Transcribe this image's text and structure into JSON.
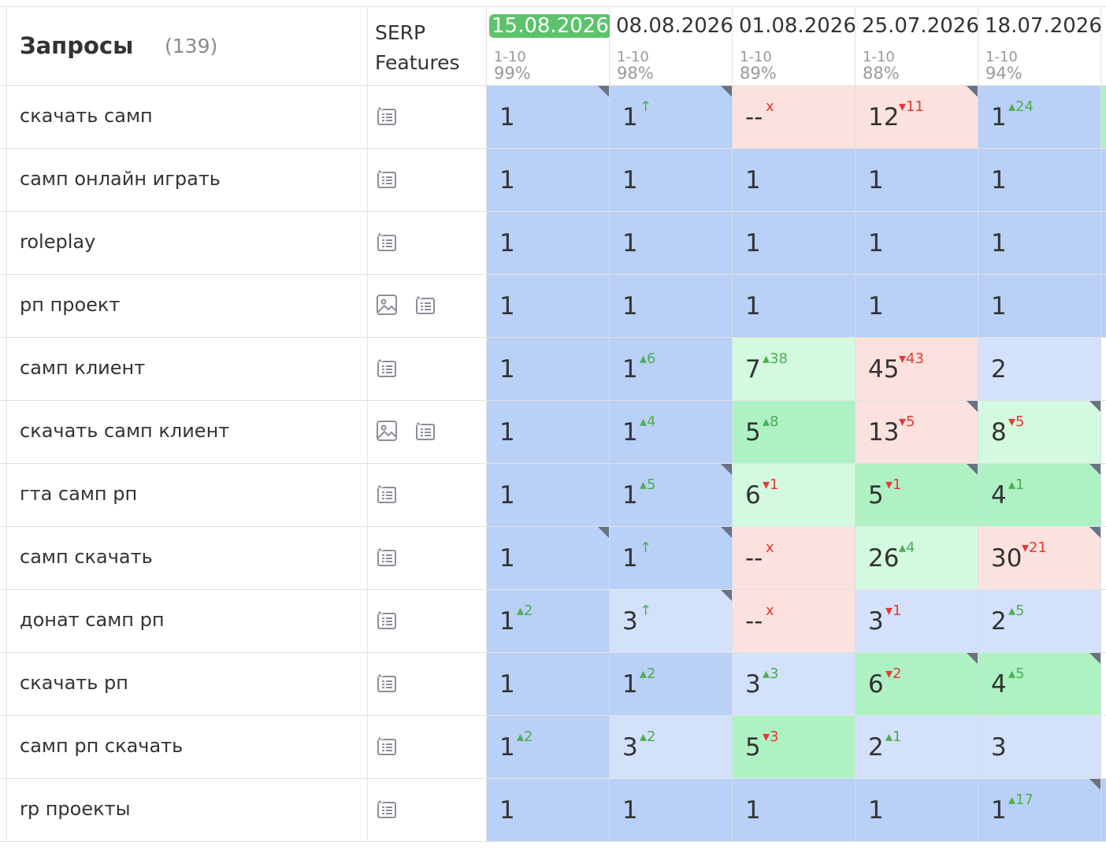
{
  "header": {
    "query_title": "Запросы",
    "query_count": "(139)",
    "serp_title": "SERP Features",
    "dates": [
      {
        "date": "15.08.2026",
        "range": "1-10",
        "pct": "99%",
        "active": true
      },
      {
        "date": "08.08.2026",
        "range": "1-10",
        "pct": "98%",
        "active": false
      },
      {
        "date": "01.08.2026",
        "range": "1-10",
        "pct": "89%",
        "active": false
      },
      {
        "date": "25.07.2026",
        "range": "1-10",
        "pct": "88%",
        "active": false
      },
      {
        "date": "18.07.2026",
        "range": "1-10",
        "pct": "94%",
        "active": false
      }
    ]
  },
  "colors": {
    "blue": "#b9d0f7",
    "lightblue": "#d3e1fb",
    "green": "#aef2c4",
    "lightgreen": "#d3fadf",
    "pink": "#fbe2df",
    "active_date": "#5cc36b",
    "delta_up": "#4caf50",
    "delta_down": "#e53935"
  },
  "rows": [
    {
      "query": "скачать самп",
      "serp": [
        "snippet-icon"
      ],
      "cells": [
        {
          "value": "1",
          "delta": "",
          "dir": "",
          "color": "blue",
          "corner": true
        },
        {
          "value": "1",
          "delta": "↑",
          "dir": "up",
          "color": "blue",
          "corner": true
        },
        {
          "value": "--",
          "delta": "x",
          "dir": "x",
          "color": "pink",
          "corner": false
        },
        {
          "value": "12",
          "delta": "▾11",
          "dir": "down",
          "color": "pink",
          "corner": true
        },
        {
          "value": "1",
          "delta": "▴24",
          "dir": "up",
          "color": "blue",
          "corner": false
        }
      ],
      "extra": "green"
    },
    {
      "query": "самп онлайн играть",
      "serp": [
        "snippet-icon"
      ],
      "cells": [
        {
          "value": "1",
          "delta": "",
          "dir": "",
          "color": "blue",
          "corner": false
        },
        {
          "value": "1",
          "delta": "",
          "dir": "",
          "color": "blue",
          "corner": false
        },
        {
          "value": "1",
          "delta": "",
          "dir": "",
          "color": "blue",
          "corner": false
        },
        {
          "value": "1",
          "delta": "",
          "dir": "",
          "color": "blue",
          "corner": false
        },
        {
          "value": "1",
          "delta": "",
          "dir": "",
          "color": "blue",
          "corner": false
        }
      ],
      "extra": "blue"
    },
    {
      "query": "roleplay",
      "serp": [
        "snippet-icon"
      ],
      "cells": [
        {
          "value": "1",
          "delta": "",
          "dir": "",
          "color": "blue",
          "corner": false
        },
        {
          "value": "1",
          "delta": "",
          "dir": "",
          "color": "blue",
          "corner": false
        },
        {
          "value": "1",
          "delta": "",
          "dir": "",
          "color": "blue",
          "corner": false
        },
        {
          "value": "1",
          "delta": "",
          "dir": "",
          "color": "blue",
          "corner": false
        },
        {
          "value": "1",
          "delta": "",
          "dir": "",
          "color": "blue",
          "corner": false
        }
      ],
      "extra": "blue"
    },
    {
      "query": "рп проект",
      "serp": [
        "image-icon",
        "snippet-icon"
      ],
      "cells": [
        {
          "value": "1",
          "delta": "",
          "dir": "",
          "color": "blue",
          "corner": false
        },
        {
          "value": "1",
          "delta": "",
          "dir": "",
          "color": "blue",
          "corner": false
        },
        {
          "value": "1",
          "delta": "",
          "dir": "",
          "color": "blue",
          "corner": false
        },
        {
          "value": "1",
          "delta": "",
          "dir": "",
          "color": "blue",
          "corner": false
        },
        {
          "value": "1",
          "delta": "",
          "dir": "",
          "color": "blue",
          "corner": false
        }
      ],
      "extra": "blue"
    },
    {
      "query": "самп клиент",
      "serp": [
        "snippet-icon"
      ],
      "cells": [
        {
          "value": "1",
          "delta": "",
          "dir": "",
          "color": "blue",
          "corner": false
        },
        {
          "value": "1",
          "delta": "▴6",
          "dir": "up",
          "color": "blue",
          "corner": false
        },
        {
          "value": "7",
          "delta": "▴38",
          "dir": "up",
          "color": "lightgreen",
          "corner": false
        },
        {
          "value": "45",
          "delta": "▾43",
          "dir": "down",
          "color": "pink",
          "corner": false
        },
        {
          "value": "2",
          "delta": "",
          "dir": "",
          "color": "lightblue",
          "corner": false
        }
      ],
      "extra": "white"
    },
    {
      "query": "скачать самп клиент",
      "serp": [
        "image-icon",
        "snippet-icon"
      ],
      "cells": [
        {
          "value": "1",
          "delta": "",
          "dir": "",
          "color": "blue",
          "corner": false
        },
        {
          "value": "1",
          "delta": "▴4",
          "dir": "up",
          "color": "blue",
          "corner": false
        },
        {
          "value": "5",
          "delta": "▴8",
          "dir": "up",
          "color": "green",
          "corner": false
        },
        {
          "value": "13",
          "delta": "▾5",
          "dir": "down",
          "color": "pink",
          "corner": true
        },
        {
          "value": "8",
          "delta": "▾5",
          "dir": "down",
          "color": "lightgreen",
          "corner": true
        }
      ],
      "extra": "white"
    },
    {
      "query": "гта самп рп",
      "serp": [
        "snippet-icon"
      ],
      "cells": [
        {
          "value": "1",
          "delta": "",
          "dir": "",
          "color": "blue",
          "corner": false
        },
        {
          "value": "1",
          "delta": "▴5",
          "dir": "up",
          "color": "blue",
          "corner": true
        },
        {
          "value": "6",
          "delta": "▾1",
          "dir": "down",
          "color": "lightgreen",
          "corner": false
        },
        {
          "value": "5",
          "delta": "▾1",
          "dir": "down",
          "color": "green",
          "corner": true
        },
        {
          "value": "4",
          "delta": "▴1",
          "dir": "up",
          "color": "green",
          "corner": true
        }
      ],
      "extra": "white"
    },
    {
      "query": "самп скачать",
      "serp": [
        "snippet-icon"
      ],
      "cells": [
        {
          "value": "1",
          "delta": "",
          "dir": "",
          "color": "blue",
          "corner": true
        },
        {
          "value": "1",
          "delta": "↑",
          "dir": "up",
          "color": "blue",
          "corner": true
        },
        {
          "value": "--",
          "delta": "x",
          "dir": "x",
          "color": "pink",
          "corner": false
        },
        {
          "value": "26",
          "delta": "▴4",
          "dir": "up",
          "color": "lightgreen",
          "corner": false
        },
        {
          "value": "30",
          "delta": "▾21",
          "dir": "down",
          "color": "pink",
          "corner": true
        }
      ],
      "extra": "white"
    },
    {
      "query": "донат самп рп",
      "serp": [
        "snippet-icon"
      ],
      "cells": [
        {
          "value": "1",
          "delta": "▴2",
          "dir": "up",
          "color": "blue",
          "corner": false
        },
        {
          "value": "3",
          "delta": "↑",
          "dir": "up",
          "color": "lightblue",
          "corner": true
        },
        {
          "value": "--",
          "delta": "x",
          "dir": "x",
          "color": "pink",
          "corner": false
        },
        {
          "value": "3",
          "delta": "▾1",
          "dir": "down",
          "color": "lightblue",
          "corner": false
        },
        {
          "value": "2",
          "delta": "▴5",
          "dir": "up",
          "color": "lightblue",
          "corner": false
        }
      ],
      "extra": "white"
    },
    {
      "query": "скачать рп",
      "serp": [
        "snippet-icon"
      ],
      "cells": [
        {
          "value": "1",
          "delta": "",
          "dir": "",
          "color": "blue",
          "corner": false
        },
        {
          "value": "1",
          "delta": "▴2",
          "dir": "up",
          "color": "blue",
          "corner": false
        },
        {
          "value": "3",
          "delta": "▴3",
          "dir": "up",
          "color": "lightblue",
          "corner": false
        },
        {
          "value": "6",
          "delta": "▾2",
          "dir": "down",
          "color": "green",
          "corner": true
        },
        {
          "value": "4",
          "delta": "▴5",
          "dir": "up",
          "color": "green",
          "corner": true
        }
      ],
      "extra": "white"
    },
    {
      "query": "самп рп скачать",
      "serp": [
        "snippet-icon"
      ],
      "cells": [
        {
          "value": "1",
          "delta": "▴2",
          "dir": "up",
          "color": "blue",
          "corner": false
        },
        {
          "value": "3",
          "delta": "▴2",
          "dir": "up",
          "color": "lightblue",
          "corner": false
        },
        {
          "value": "5",
          "delta": "▾3",
          "dir": "down",
          "color": "green",
          "corner": false
        },
        {
          "value": "2",
          "delta": "▴1",
          "dir": "up",
          "color": "lightblue",
          "corner": false
        },
        {
          "value": "3",
          "delta": "",
          "dir": "",
          "color": "lightblue",
          "corner": false
        }
      ],
      "extra": "white"
    },
    {
      "query": "rp проекты",
      "serp": [
        "snippet-icon"
      ],
      "cells": [
        {
          "value": "1",
          "delta": "",
          "dir": "",
          "color": "blue",
          "corner": false
        },
        {
          "value": "1",
          "delta": "",
          "dir": "",
          "color": "blue",
          "corner": false
        },
        {
          "value": "1",
          "delta": "",
          "dir": "",
          "color": "blue",
          "corner": false
        },
        {
          "value": "1",
          "delta": "",
          "dir": "",
          "color": "blue",
          "corner": false
        },
        {
          "value": "1",
          "delta": "▴17",
          "dir": "up",
          "color": "blue",
          "corner": true
        }
      ],
      "extra": "blue"
    }
  ]
}
